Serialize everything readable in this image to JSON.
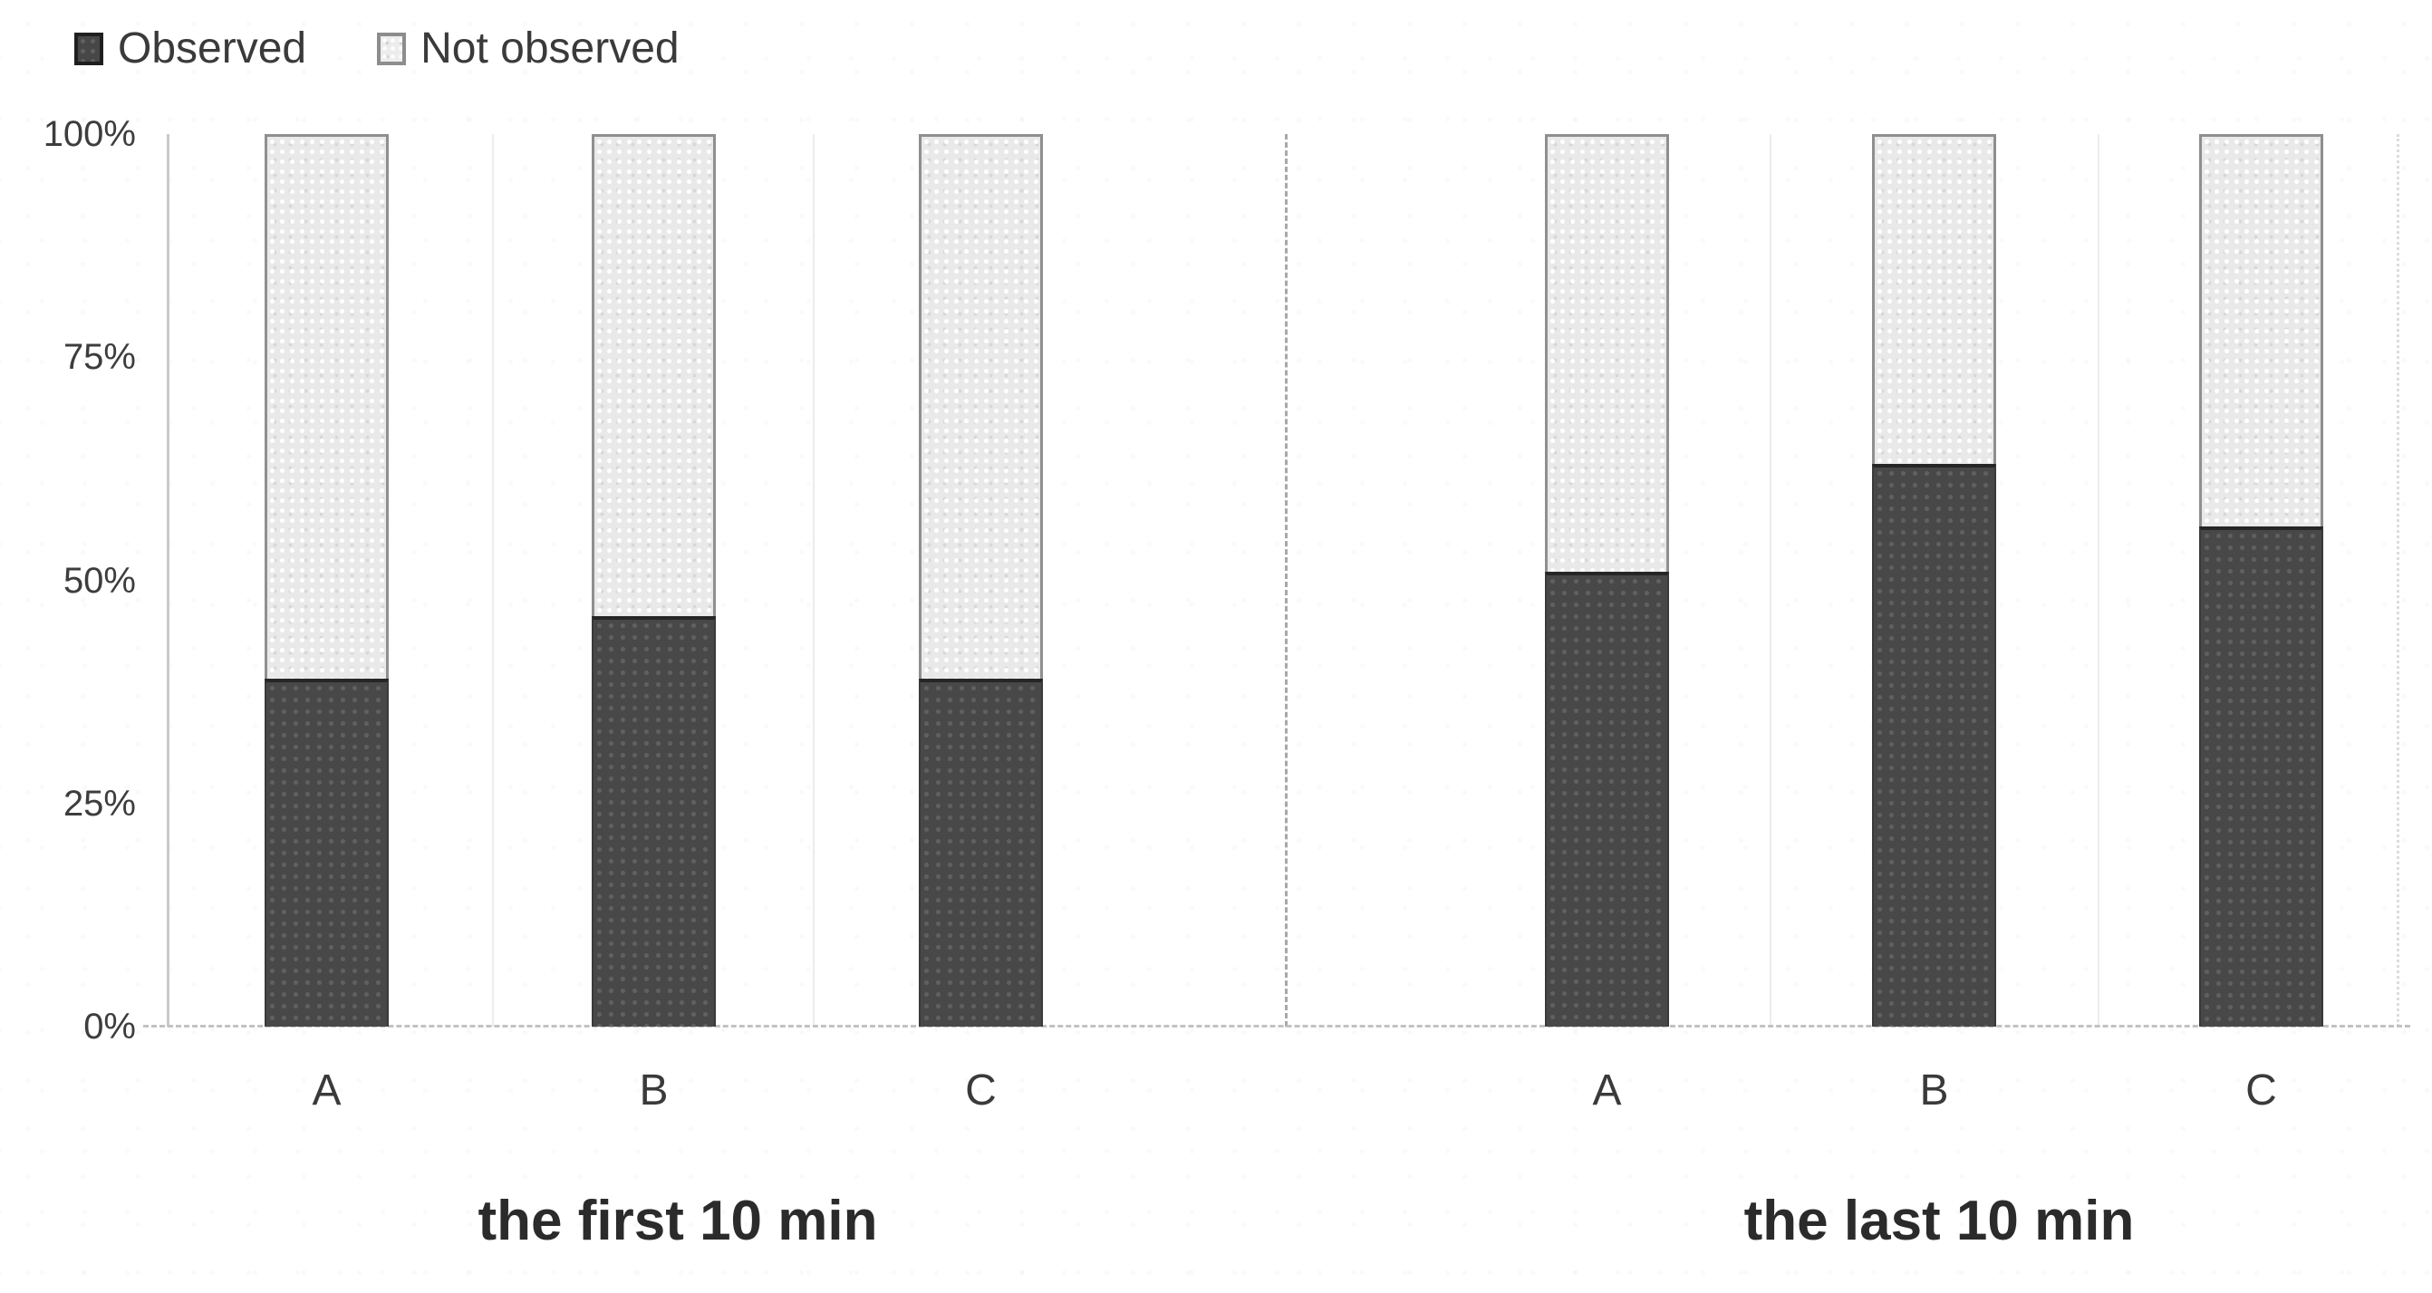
{
  "chart_data": {
    "type": "bar",
    "stacked": true,
    "percent": true,
    "title": "",
    "xlabel": "",
    "ylabel": "",
    "ylim": [
      0,
      100
    ],
    "yticks": [
      "0%",
      "25%",
      "50%",
      "75%",
      "100%"
    ],
    "grid": "dashed-baseline-only",
    "legend_position": "top-left",
    "legend": [
      {
        "name": "Observed",
        "color": "#474747"
      },
      {
        "name": "Not observed",
        "color": "#e9e9e9"
      }
    ],
    "groups": [
      {
        "label": "the first 10 min",
        "categories": [
          "A",
          "B",
          "C"
        ],
        "series": [
          {
            "name": "Observed",
            "values": [
              39,
              46,
              39
            ]
          },
          {
            "name": "Not observed",
            "values": [
              61,
              54,
              61
            ]
          }
        ]
      },
      {
        "label": "the last 10 min",
        "categories": [
          "A",
          "B",
          "C"
        ],
        "series": [
          {
            "name": "Observed",
            "values": [
              51,
              63,
              56
            ]
          },
          {
            "name": "Not observed",
            "values": [
              49,
              37,
              44
            ]
          }
        ]
      }
    ]
  }
}
